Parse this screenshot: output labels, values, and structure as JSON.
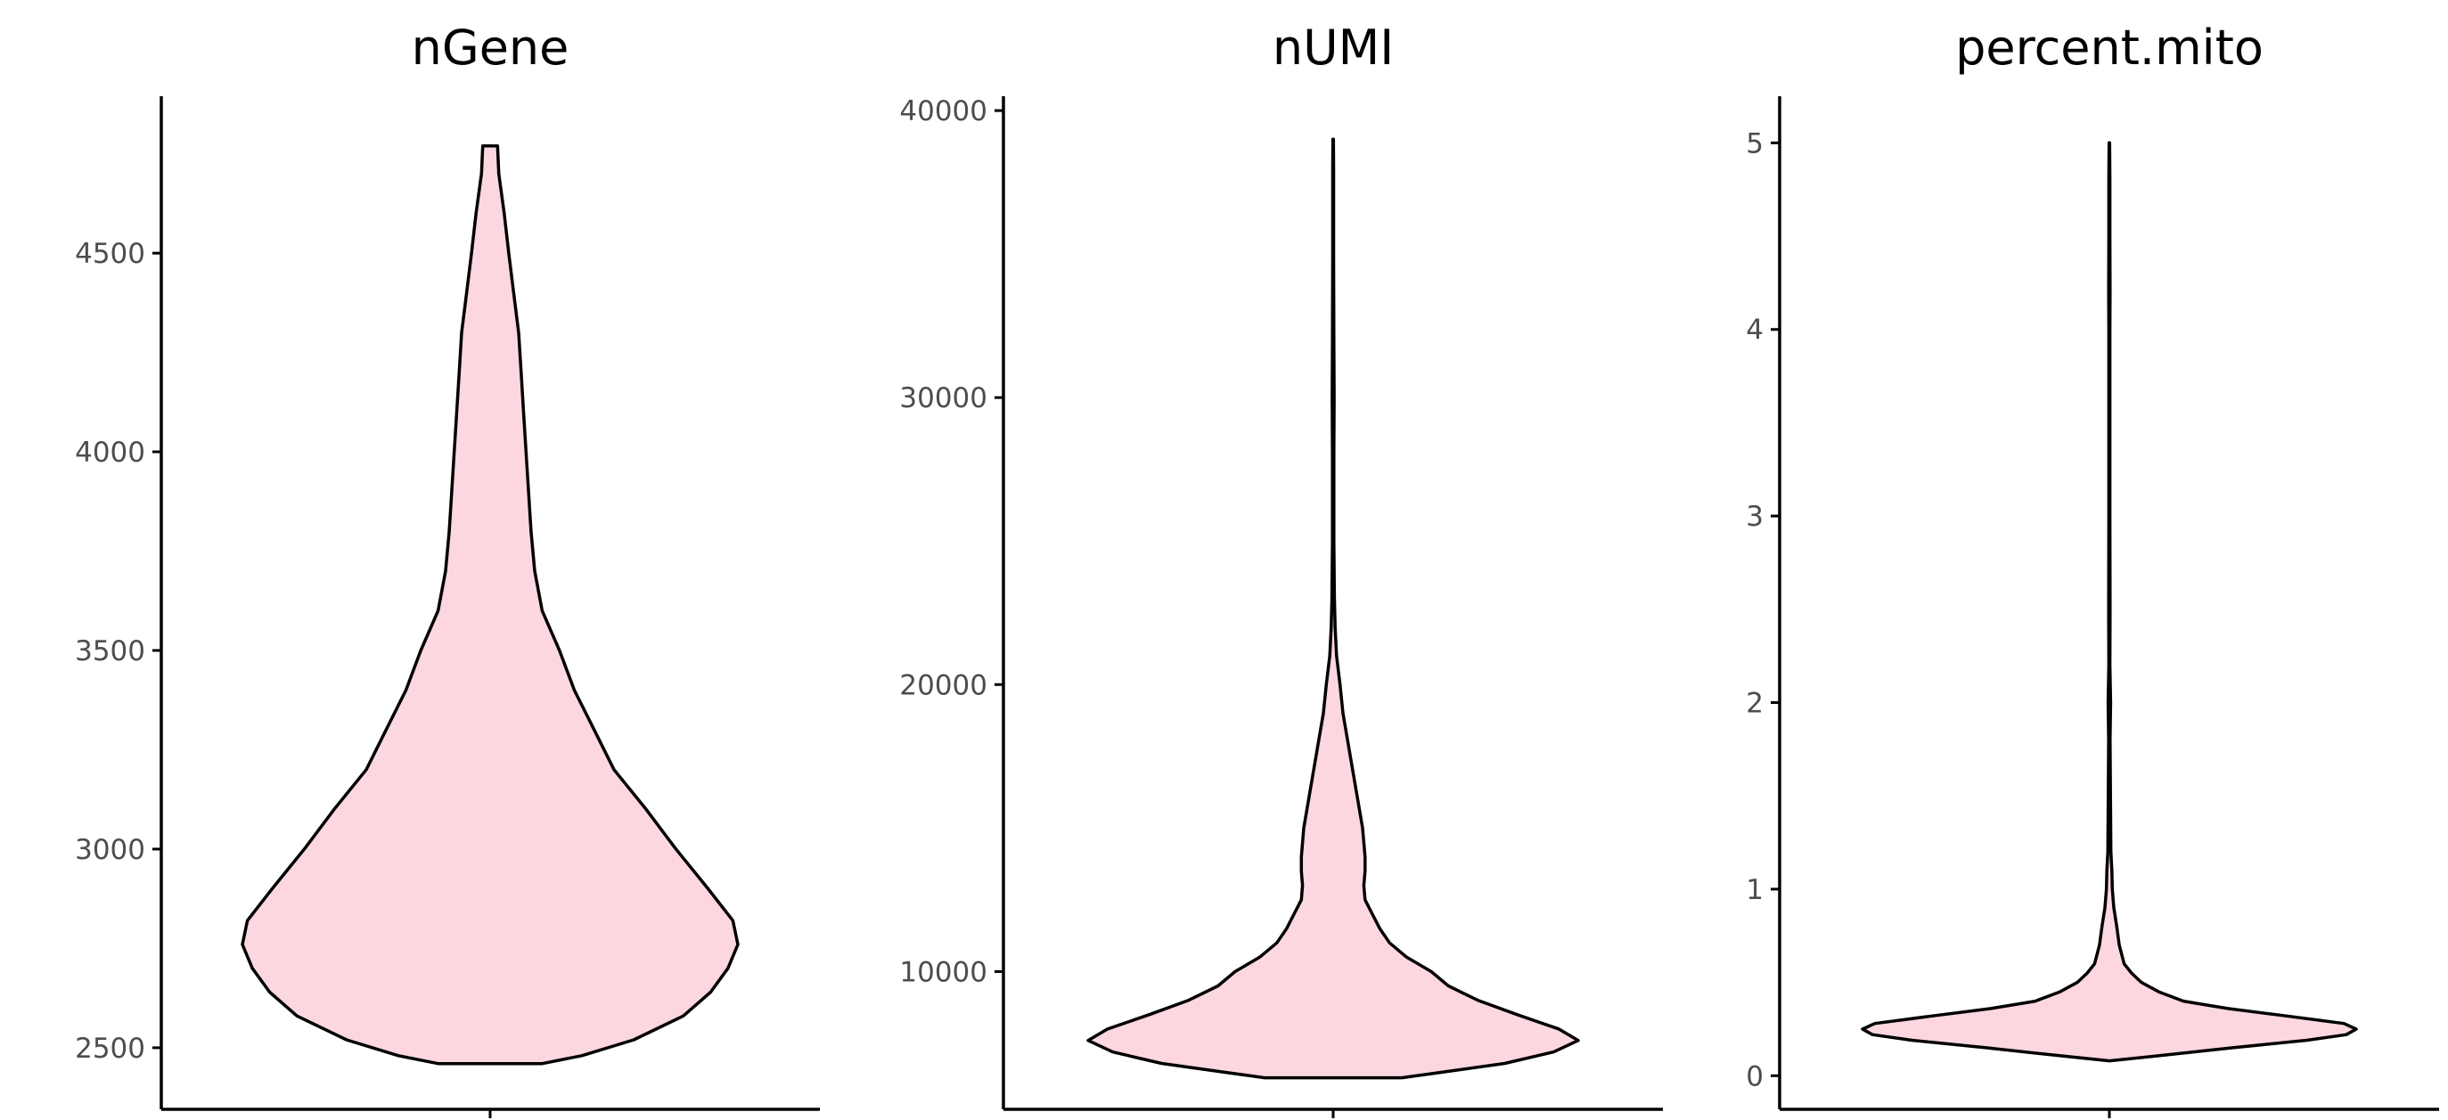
{
  "chart_data": [
    {
      "type": "violin",
      "title": "nGene",
      "xlabel": "",
      "ylabel": "",
      "ylim": [
        2345,
        4895
      ],
      "yticks": [
        2500,
        3000,
        3500,
        4000,
        4500
      ],
      "fill_color": "#fcd7df",
      "outline_color": "#000000",
      "density": [
        [
          2460,
          0.21
        ],
        [
          2480,
          0.37
        ],
        [
          2520,
          0.58
        ],
        [
          2580,
          0.78
        ],
        [
          2640,
          0.89
        ],
        [
          2700,
          0.96
        ],
        [
          2760,
          1.0
        ],
        [
          2820,
          0.98
        ],
        [
          2900,
          0.88
        ],
        [
          3000,
          0.75
        ],
        [
          3100,
          0.63
        ],
        [
          3200,
          0.5
        ],
        [
          3300,
          0.42
        ],
        [
          3400,
          0.34
        ],
        [
          3500,
          0.28
        ],
        [
          3600,
          0.21
        ],
        [
          3700,
          0.18
        ],
        [
          3800,
          0.165
        ],
        [
          3900,
          0.155
        ],
        [
          4000,
          0.145
        ],
        [
          4100,
          0.135
        ],
        [
          4200,
          0.125
        ],
        [
          4300,
          0.115
        ],
        [
          4400,
          0.095
        ],
        [
          4500,
          0.075
        ],
        [
          4600,
          0.057
        ],
        [
          4700,
          0.035
        ],
        [
          4770,
          0.03
        ]
      ]
    },
    {
      "type": "violin",
      "title": "nUMI",
      "xlabel": "",
      "ylabel": "",
      "ylim": [
        5200,
        40500
      ],
      "yticks": [
        10000,
        20000,
        30000,
        40000
      ],
      "fill_color": "#fcd7df",
      "outline_color": "#000000",
      "density": [
        [
          6300,
          0.28
        ],
        [
          6500,
          0.45
        ],
        [
          6800,
          0.7
        ],
        [
          7200,
          0.9
        ],
        [
          7600,
          1.0
        ],
        [
          8000,
          0.92
        ],
        [
          8500,
          0.75
        ],
        [
          9000,
          0.59
        ],
        [
          9500,
          0.47
        ],
        [
          10000,
          0.4
        ],
        [
          10500,
          0.3
        ],
        [
          11000,
          0.23
        ],
        [
          11500,
          0.19
        ],
        [
          12000,
          0.16
        ],
        [
          12500,
          0.13
        ],
        [
          13000,
          0.125
        ],
        [
          13500,
          0.13
        ],
        [
          14000,
          0.13
        ],
        [
          15000,
          0.12
        ],
        [
          16000,
          0.1
        ],
        [
          17000,
          0.08
        ],
        [
          18000,
          0.06
        ],
        [
          19000,
          0.04
        ],
        [
          20000,
          0.028
        ],
        [
          21000,
          0.014
        ],
        [
          22000,
          0.008
        ],
        [
          23000,
          0.005
        ],
        [
          25000,
          0.003
        ],
        [
          28000,
          0.003
        ],
        [
          30000,
          0.004
        ],
        [
          32000,
          0.003
        ],
        [
          35000,
          0.002
        ],
        [
          38000,
          0.002
        ],
        [
          39000,
          0.001
        ]
      ]
    },
    {
      "type": "violin",
      "title": "percent.mito",
      "xlabel": "",
      "ylabel": "",
      "ylim": [
        -0.18,
        5.25
      ],
      "yticks": [
        0,
        1,
        2,
        3,
        4,
        5
      ],
      "fill_color": "#fcd7df",
      "outline_color": "#000000",
      "density": [
        [
          0.08,
          0.0
        ],
        [
          0.11,
          0.22
        ],
        [
          0.15,
          0.5
        ],
        [
          0.19,
          0.8
        ],
        [
          0.22,
          0.96
        ],
        [
          0.25,
          1.0
        ],
        [
          0.28,
          0.95
        ],
        [
          0.32,
          0.72
        ],
        [
          0.36,
          0.48
        ],
        [
          0.4,
          0.3
        ],
        [
          0.45,
          0.2
        ],
        [
          0.5,
          0.13
        ],
        [
          0.55,
          0.09
        ],
        [
          0.6,
          0.06
        ],
        [
          0.7,
          0.04
        ],
        [
          0.8,
          0.03
        ],
        [
          0.9,
          0.018
        ],
        [
          1.0,
          0.012
        ],
        [
          1.1,
          0.01
        ],
        [
          1.2,
          0.006
        ],
        [
          1.4,
          0.005
        ],
        [
          1.6,
          0.004
        ],
        [
          1.8,
          0.003
        ],
        [
          2.0,
          0.005
        ],
        [
          2.2,
          0.002
        ],
        [
          2.5,
          0.003
        ],
        [
          3.0,
          0.002
        ],
        [
          3.5,
          0.002
        ],
        [
          4.0,
          0.002
        ],
        [
          4.2,
          0.003
        ],
        [
          4.5,
          0.002
        ],
        [
          4.8,
          0.002
        ],
        [
          5.0,
          0.001
        ]
      ]
    }
  ]
}
